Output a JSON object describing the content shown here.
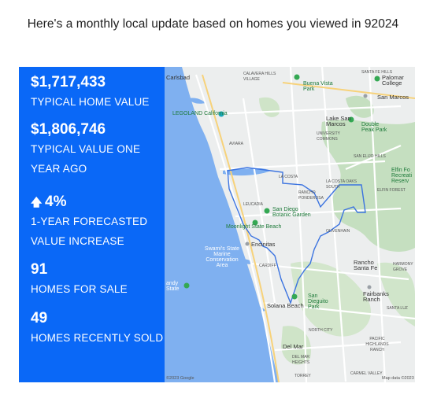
{
  "header": {
    "title": "Here's a monthly local update based on homes you viewed in 92024"
  },
  "stats": [
    {
      "value": "$1,717,433",
      "label": "TYPICAL HOME VALUE"
    },
    {
      "value": "$1,806,746",
      "label": "TYPICAL VALUE ONE YEAR AGO"
    },
    {
      "value": "4%",
      "label": "1-YEAR FORECASTED VALUE INCREASE",
      "icon": "up-arrow-icon"
    },
    {
      "value": "91",
      "label": "HOMES FOR SALE"
    },
    {
      "value": "49",
      "label": "HOMES RECENTLY SOLD"
    }
  ],
  "map": {
    "labels": {
      "carlsbad": "Carlsbad",
      "calavera": "CALAVERA HILLS VILLAGE",
      "santa_fe_hills": "SANTA FE HILLS",
      "buena_vista": "Buena Vista Park",
      "palomar": "Palomar College",
      "san_marcos": "San Marcos",
      "legoland": "LEGOLAND California",
      "lake_san_marcos": "Lake San Marcos",
      "double_peak": "Double Peak Park",
      "aviara": "AVIARA",
      "university_commons": "UNIVERSITY COMMONS",
      "san_elijo_hills": "SAN ELIJO HILLS",
      "elfin_forest": "Elfin Fo Recreati Reserv",
      "la_costa": "LA COSTA",
      "la_costa_oaks": "LA COSTA OAKS SOUTH",
      "rancho_ponderosa": "RANCHO PONDEROSA",
      "elfin_forest_sm": "ELFIN FOREST",
      "leucadia": "LEUCADIA",
      "sd_botanic": "San Diego Botanic Garden",
      "moonlight": "Moonlight State Beach",
      "olivenhain": "OLIVENHAIN",
      "swamis": "Swami's State Marine Conservation Area",
      "encinitas": "Encinitas",
      "rancho_santa_fe": "Rancho Santa Fe",
      "cardiff": "CARDIFF",
      "sandy_state": "andy State",
      "harmony": "HARMONY GROVE",
      "solana": "Solana Beach",
      "san_dieguito": "San Dieguito Park",
      "fairbanks": "Fairbanks Ranch",
      "santa_luz": "SANTA LUZ",
      "north_city": "NORTH CITY",
      "pacific_highlands": "PACIFIC HIGHLANDS RANCH",
      "del_mar": "Del Mar",
      "del_mar_heights": "DEL MAR HEIGHTS",
      "carmel_valley": "CARMEL VALLEY",
      "torrey": "TORREY",
      "copyright": "©2023 Google",
      "map_data": "Map data ©2023"
    }
  },
  "colors": {
    "panel": "#0a68f7",
    "boundary": "#3b73e0",
    "ocean": "#7fb0f0"
  }
}
